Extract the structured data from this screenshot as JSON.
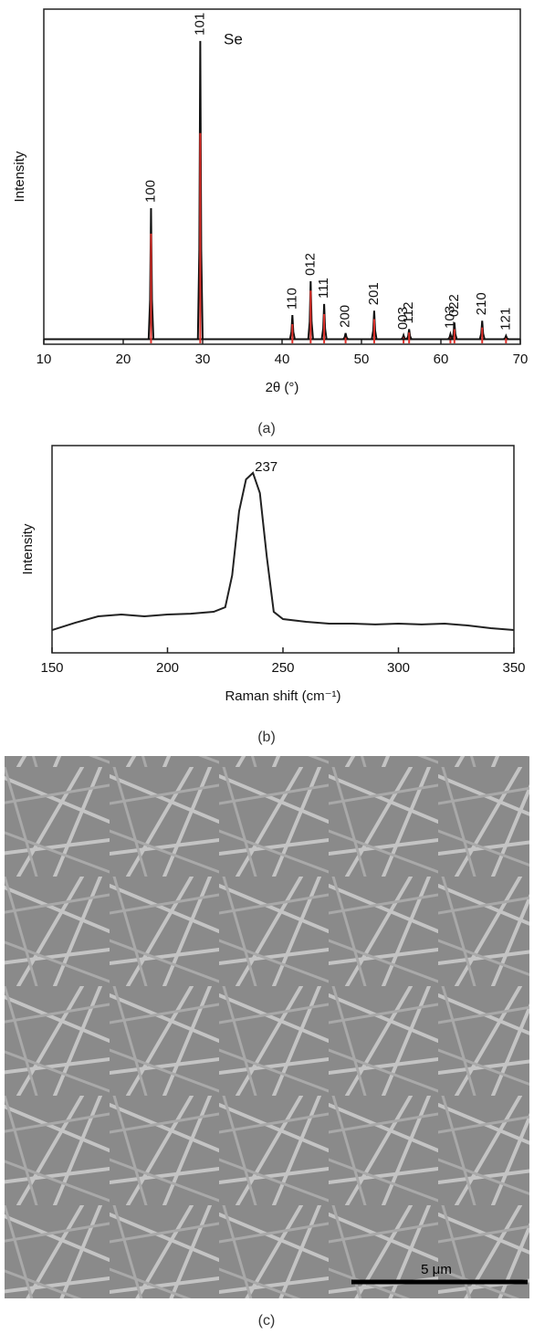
{
  "chart_data": [
    {
      "type": "xrd",
      "title": "Se",
      "x_label": "2θ (°)",
      "y_label": "Intensity",
      "caption": "(a)",
      "xlim": [
        10,
        70
      ],
      "xticks": [
        10,
        20,
        30,
        40,
        50,
        60,
        70
      ],
      "ylim": [
        0,
        100
      ],
      "baseline": 1.5,
      "peaks": {
        "x": [
          23.5,
          29.7,
          41.3,
          43.6,
          45.3,
          48.0,
          51.6,
          55.3,
          56.0,
          61.2,
          61.7,
          65.2,
          68.2
        ],
        "labels": [
          "100",
          "101",
          "110",
          "012",
          "111",
          "200",
          "201",
          "003",
          "112",
          "103",
          "022",
          "210",
          "121"
        ],
        "values": [
          40.6,
          90.5,
          8.7,
          18.8,
          12,
          3.3,
          10,
          2.7,
          4.5,
          3,
          6.5,
          7,
          2.5
        ],
        "reference_values": [
          33,
          63,
          6,
          16,
          9,
          2,
          7.5,
          2,
          3.5,
          2,
          4.5,
          5,
          1.8
        ],
        "color": "#111111",
        "reference_color": "#e0302a"
      }
    },
    {
      "type": "line",
      "x_label": "Raman shift (cm⁻¹)",
      "y_label": "Intensity",
      "caption": "(b)",
      "xlim": [
        150,
        350
      ],
      "xticks": [
        150,
        200,
        250,
        300,
        350
      ],
      "ylim": [
        0,
        100
      ],
      "color": "#222222",
      "x": [
        150,
        160,
        170,
        180,
        190,
        200,
        210,
        220,
        225,
        228,
        231,
        234,
        237,
        240,
        243,
        246,
        250,
        260,
        270,
        280,
        290,
        300,
        310,
        320,
        330,
        340,
        350
      ],
      "values": [
        11,
        14.5,
        17.6,
        18.5,
        17.6,
        18.5,
        18.9,
        19.8,
        22,
        37.4,
        68.3,
        83.7,
        86.8,
        77.1,
        46.3,
        19.8,
        16.3,
        15,
        14.1,
        14.1,
        13.7,
        14.1,
        13.7,
        14.1,
        13.2,
        11.9,
        11
      ],
      "peak_annotation": {
        "x": 237,
        "y": 86.8
      }
    }
  ],
  "image_panel": {
    "scale_bar": "5 μm",
    "caption": "(c)"
  }
}
